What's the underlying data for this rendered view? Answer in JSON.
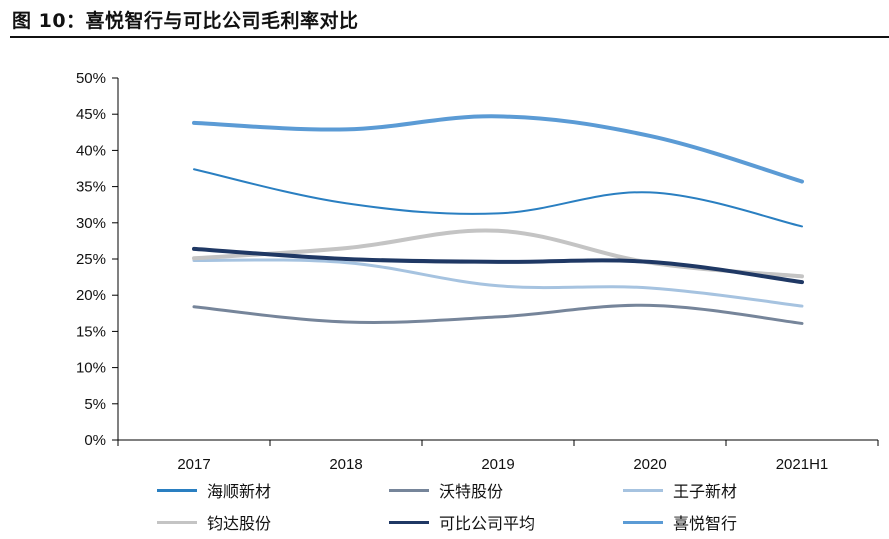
{
  "header": {
    "title": "图 10：喜悦智行与可比公司毛利率对比"
  },
  "chart_data": {
    "type": "line",
    "title": "图 10：喜悦智行与可比公司毛利率对比",
    "xlabel": "",
    "ylabel": "",
    "categories": [
      "2017",
      "2018",
      "2019",
      "2020",
      "2021H1"
    ],
    "ylim": [
      0,
      50
    ],
    "yticks": [
      0,
      5,
      10,
      15,
      20,
      25,
      30,
      35,
      40,
      45,
      50
    ],
    "ytick_labels": [
      "0%",
      "5%",
      "10%",
      "15%",
      "20%",
      "25%",
      "30%",
      "35%",
      "40%",
      "45%",
      "50%"
    ],
    "y_unit": "%",
    "grid": false,
    "legend_position": "bottom",
    "series": [
      {
        "name": "海顺新材",
        "color": "#2a7fc1",
        "width": 2,
        "values": [
          37.4,
          32.7,
          31.3,
          34.2,
          29.5
        ]
      },
      {
        "name": "沃特股份",
        "color": "#76859a",
        "width": 3,
        "values": [
          18.4,
          16.3,
          17.0,
          18.6,
          16.1
        ]
      },
      {
        "name": "王子新材",
        "color": "#a6c3e0",
        "width": 3,
        "values": [
          24.8,
          24.5,
          21.3,
          21.0,
          18.5
        ]
      },
      {
        "name": "钧达股份",
        "color": "#c4c4c4",
        "width": 4,
        "values": [
          25.1,
          26.5,
          28.9,
          24.5,
          22.6
        ]
      },
      {
        "name": "可比公司平均",
        "color": "#1f3864",
        "width": 4,
        "values": [
          26.4,
          25.0,
          24.6,
          24.6,
          21.8
        ]
      },
      {
        "name": "喜悦智行",
        "color": "#5b9bd5",
        "width": 4,
        "values": [
          43.8,
          42.9,
          44.7,
          42.0,
          35.7
        ]
      }
    ]
  }
}
